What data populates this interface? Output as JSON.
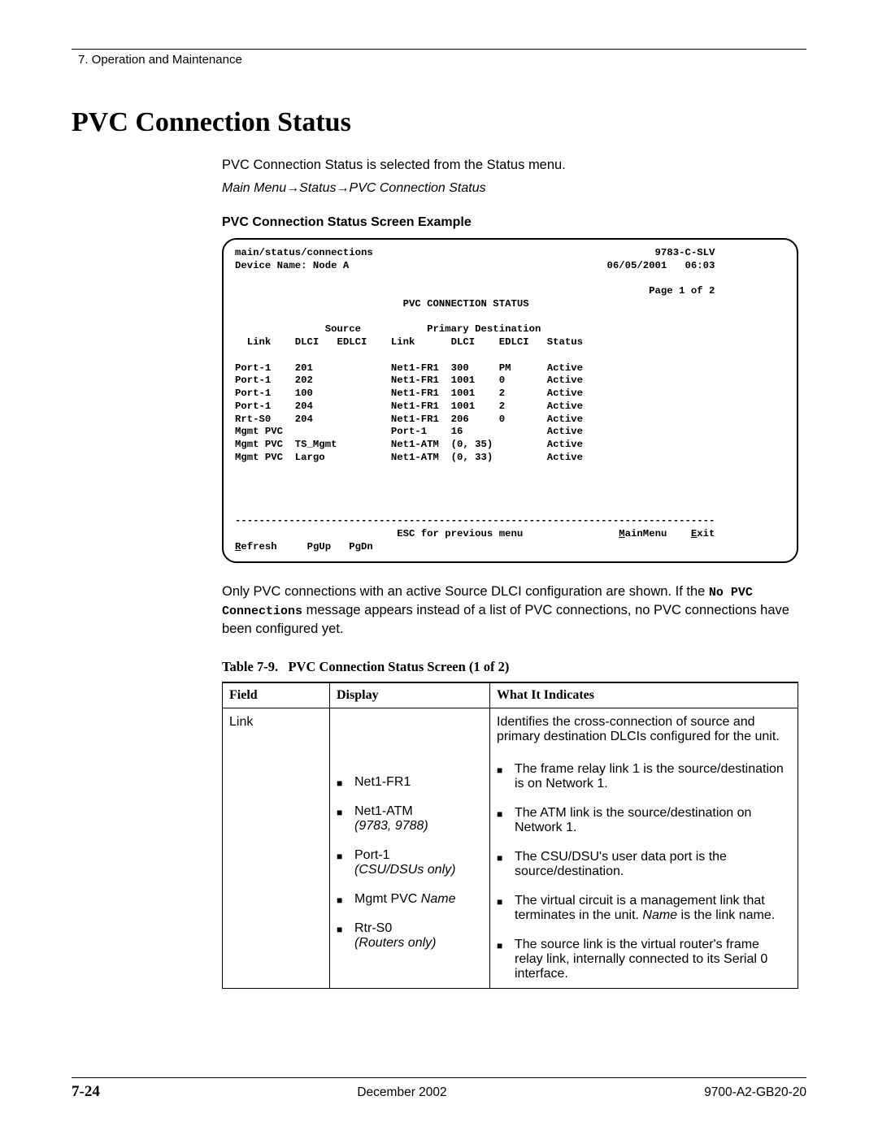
{
  "running_head": "7. Operation and Maintenance",
  "title": "PVC Connection Status",
  "intro": "PVC Connection Status is selected from the Status menu.",
  "breadcrumb": {
    "a": "Main Menu",
    "b": "Status",
    "c": "PVC Connection Status",
    "arrow": "→"
  },
  "example_title": "PVC Connection Status Screen Example",
  "terminal": {
    "path": "main/status/connections",
    "model": "9783-C-SLV",
    "device_name_label": "Device Name: Node A",
    "date": "06/05/2001",
    "time": "06:03",
    "page": "Page 1 of 2",
    "screen_title": "PVC CONNECTION STATUS",
    "group_headers": {
      "source": "Source",
      "dest": "Primary Destination"
    },
    "col_headers": [
      "Link",
      "DLCI",
      "EDLCI",
      "Link",
      "DLCI",
      "EDLCI",
      "Status"
    ],
    "rows": [
      [
        "Port-1",
        "201",
        "",
        "Net1-FR1",
        "300",
        "PM",
        "Active"
      ],
      [
        "Port-1",
        "202",
        "",
        "Net1-FR1",
        "1001",
        "0",
        "Active"
      ],
      [
        "Port-1",
        "100",
        "",
        "Net1-FR1",
        "1001",
        "2",
        "Active"
      ],
      [
        "Port-1",
        "204",
        "",
        "Net1-FR1",
        "1001",
        "2",
        "Active"
      ],
      [
        "Rrt-S0",
        "204",
        "",
        "Net1-FR1",
        "206",
        "0",
        "Active"
      ],
      [
        "Mgmt PVC",
        "",
        "",
        "Port-1",
        "16",
        "",
        "Active"
      ],
      [
        "Mgmt PVC",
        "TS_Mgmt",
        "",
        "Net1-ATM",
        "(0, 35)",
        "",
        "Active"
      ],
      [
        "Mgmt PVC",
        "Largo",
        "",
        "Net1-ATM",
        "(0, 33)",
        "",
        "Active"
      ]
    ],
    "hint": "ESC for previous menu",
    "menu_main_u": "M",
    "menu_main_rest": "ainMenu",
    "menu_exit_u": "E",
    "menu_exit_rest": "xit",
    "fn_refresh_u": "R",
    "fn_refresh_rest": "efresh",
    "fn_pgup": "PgUp",
    "fn_pgdn": "PgDn"
  },
  "after_terminal": {
    "p1a": "Only PVC connections with an active Source DLCI configuration are shown. If the ",
    "code": "No PVC Connections",
    "p1b": " message appears instead of a list of PVC connections, no PVC connections have been configured yet."
  },
  "table_caption": {
    "label": "Table 7-9.",
    "title": "PVC Connection Status Screen (1 of 2)"
  },
  "table": {
    "headers": {
      "field": "Field",
      "display": "Display",
      "what": "What It Indicates"
    },
    "row1": {
      "field": "Link",
      "desc_top": "Identifies the cross-connection of source and primary destination DLCIs configured for the unit.",
      "display_items": [
        {
          "main": "Net1-FR1",
          "note": ""
        },
        {
          "main": "Net1-ATM",
          "note": "(9783, 9788)"
        },
        {
          "main": "Port-1",
          "note": "(CSU/DSUs only)"
        },
        {
          "main_a": "Mgmt PVC ",
          "main_i": "Name",
          "note": ""
        },
        {
          "main": "Rtr-S0",
          "note": "(Routers only)"
        }
      ],
      "what_items": [
        "The frame relay link 1 is the source/destination is on Network 1.",
        "The ATM link is the source/destination on Network 1.",
        "The CSU/DSU's user data port is the source/destination.",
        {
          "a": "The virtual circuit is a management link that terminates in the unit. ",
          "i": "Name",
          "b": " is the link name."
        },
        "The source link is the virtual router's frame relay link, internally connected to its Serial 0 interface."
      ]
    }
  },
  "footer": {
    "page": "7-24",
    "date": "December 2002",
    "doc": "9700-A2-GB20-20"
  },
  "colors": {
    "text": "#000000",
    "bg": "#ffffff",
    "rule": "#000000"
  }
}
